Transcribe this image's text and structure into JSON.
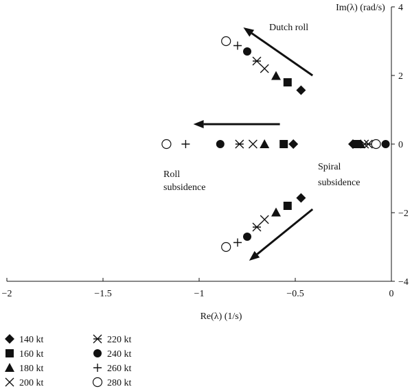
{
  "chart_data": {
    "type": "scatter",
    "xlabel": "Re(λ) (1/s)",
    "ylabel": "Im(λ) (rad/s)",
    "xlim": [
      -2,
      0
    ],
    "ylim": [
      -4,
      4
    ],
    "x_ticks": [
      -2,
      -1.5,
      -1,
      -0.5,
      0
    ],
    "x_tick_labels": [
      "−2",
      "−1.5",
      "−1",
      "−0.5",
      "0"
    ],
    "y_ticks": [
      4,
      2,
      0,
      -2,
      -4
    ],
    "y_tick_labels": [
      "4",
      "2",
      "0",
      "−2",
      "−4"
    ],
    "grid": false,
    "legend_position": "bottom-left",
    "annotations": [
      {
        "id": "dutch-roll",
        "lines": [
          "Dutch roll"
        ]
      },
      {
        "id": "roll-subsidence",
        "lines": [
          "Roll",
          "subsidence"
        ]
      },
      {
        "id": "spiral-subsidence",
        "lines": [
          "Spiral",
          "subsidence"
        ]
      }
    ],
    "arrows": [
      {
        "id": "dutch-roll-upper-arrow",
        "from": [
          -0.41,
          2.0
        ],
        "to": [
          -0.77,
          3.4
        ]
      },
      {
        "id": "roll-subsidence-arrow",
        "from": [
          -0.58,
          0.58
        ],
        "to": [
          -1.03,
          0.58
        ]
      },
      {
        "id": "dutch-roll-lower-arrow",
        "from": [
          -0.41,
          -1.9
        ],
        "to": [
          -0.74,
          -3.4
        ]
      }
    ],
    "series": [
      {
        "name": "140 kt",
        "marker": "diamond",
        "points": [
          [
            -0.47,
            1.57
          ],
          [
            -0.47,
            -1.57
          ],
          [
            -0.51,
            0
          ],
          [
            -0.2,
            0
          ]
        ]
      },
      {
        "name": "160 kt",
        "marker": "square",
        "points": [
          [
            -0.54,
            1.8
          ],
          [
            -0.54,
            -1.8
          ],
          [
            -0.56,
            0
          ],
          [
            -0.18,
            0
          ]
        ]
      },
      {
        "name": "180 kt",
        "marker": "triangle",
        "points": [
          [
            -0.6,
            1.99
          ],
          [
            -0.6,
            -1.99
          ],
          [
            -0.66,
            0
          ],
          [
            -0.16,
            0
          ]
        ]
      },
      {
        "name": "200 kt",
        "marker": "x",
        "points": [
          [
            -0.66,
            2.2
          ],
          [
            -0.66,
            -2.2
          ],
          [
            -0.72,
            0
          ],
          [
            -0.14,
            0
          ]
        ]
      },
      {
        "name": "220 kt",
        "marker": "asterisk",
        "points": [
          [
            -0.7,
            2.42
          ],
          [
            -0.7,
            -2.42
          ],
          [
            -0.79,
            0
          ],
          [
            -0.12,
            0
          ]
        ]
      },
      {
        "name": "240 kt",
        "marker": "circle-filled",
        "points": [
          [
            -0.75,
            2.7
          ],
          [
            -0.75,
            -2.7
          ],
          [
            -0.89,
            0
          ],
          [
            -0.03,
            0
          ]
        ]
      },
      {
        "name": "260 kt",
        "marker": "plus",
        "points": [
          [
            -0.8,
            2.87
          ],
          [
            -0.8,
            -2.87
          ],
          [
            -1.07,
            0
          ],
          [
            -0.09,
            0
          ]
        ]
      },
      {
        "name": "280 kt",
        "marker": "circle-open",
        "points": [
          [
            -0.86,
            3.0
          ],
          [
            -0.86,
            -3.0
          ],
          [
            -1.17,
            0
          ],
          [
            -0.08,
            0
          ]
        ]
      }
    ]
  }
}
